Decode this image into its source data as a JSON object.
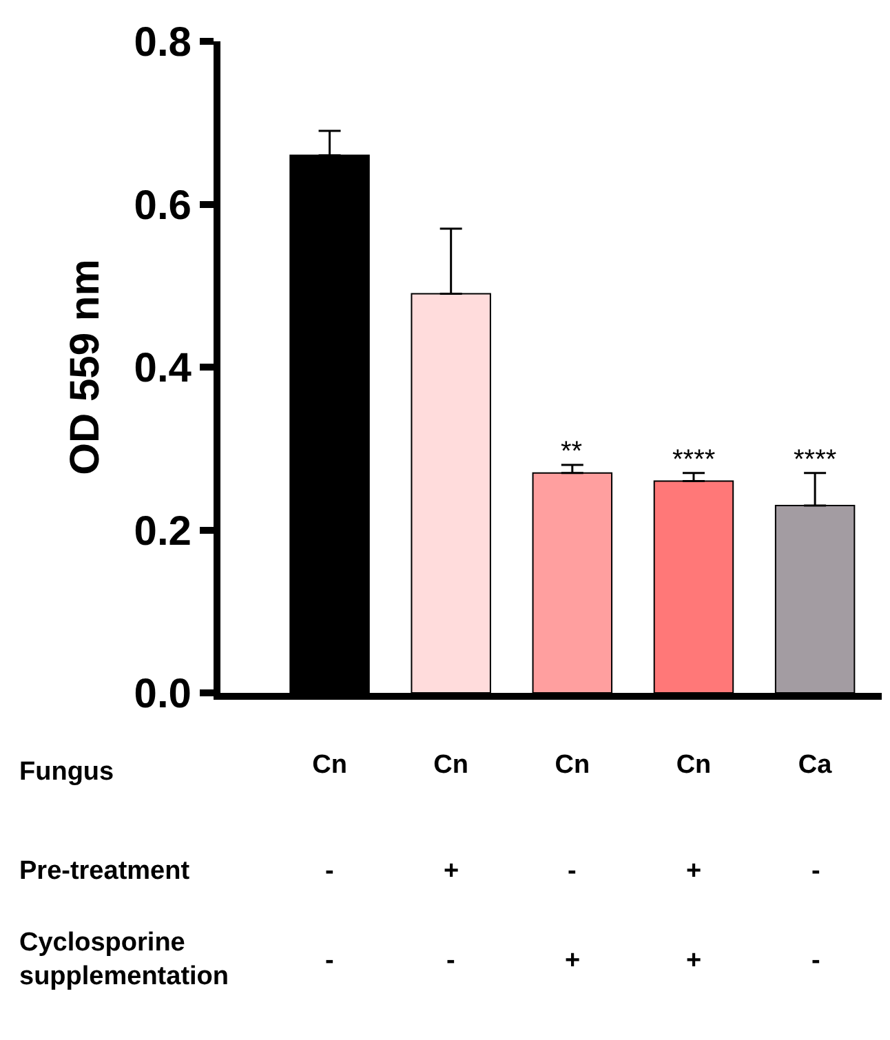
{
  "chart_data": {
    "type": "bar",
    "ylabel": "OD 559 nm",
    "categories": [
      "Cn",
      "Cn",
      "Cn",
      "Cn",
      "Ca"
    ],
    "values": [
      0.66,
      0.49,
      0.27,
      0.26,
      0.23
    ],
    "colors": [
      "#000000",
      "#ffdcdc",
      "#ff9f9f",
      "#ff7878",
      "#a39ca2"
    ],
    "errors": [
      [
        0.66,
        0.69
      ],
      [
        0.49,
        0.57
      ],
      [
        0.27,
        0.28
      ],
      [
        0.26,
        0.27
      ],
      [
        0.23,
        0.27
      ]
    ],
    "value_labels": [
      null,
      null,
      "**",
      "****",
      "****"
    ],
    "ylim": [
      0,
      0.8
    ],
    "yticks": [
      {
        "value": 0,
        "label": "0.0"
      },
      {
        "value": 0.2,
        "label": "0.2"
      },
      {
        "value": 0.4,
        "label": "0.4"
      },
      {
        "value": 0.6,
        "label": "0.6"
      },
      {
        "value": 0.8,
        "label": "0.8"
      }
    ],
    "annotations": [
      "Fungus",
      "Pre-treatment",
      "-",
      "+",
      "-",
      "+",
      "-",
      "Cyclosporine\nsupplementation",
      "-",
      "-",
      "+",
      "+",
      "-"
    ]
  }
}
